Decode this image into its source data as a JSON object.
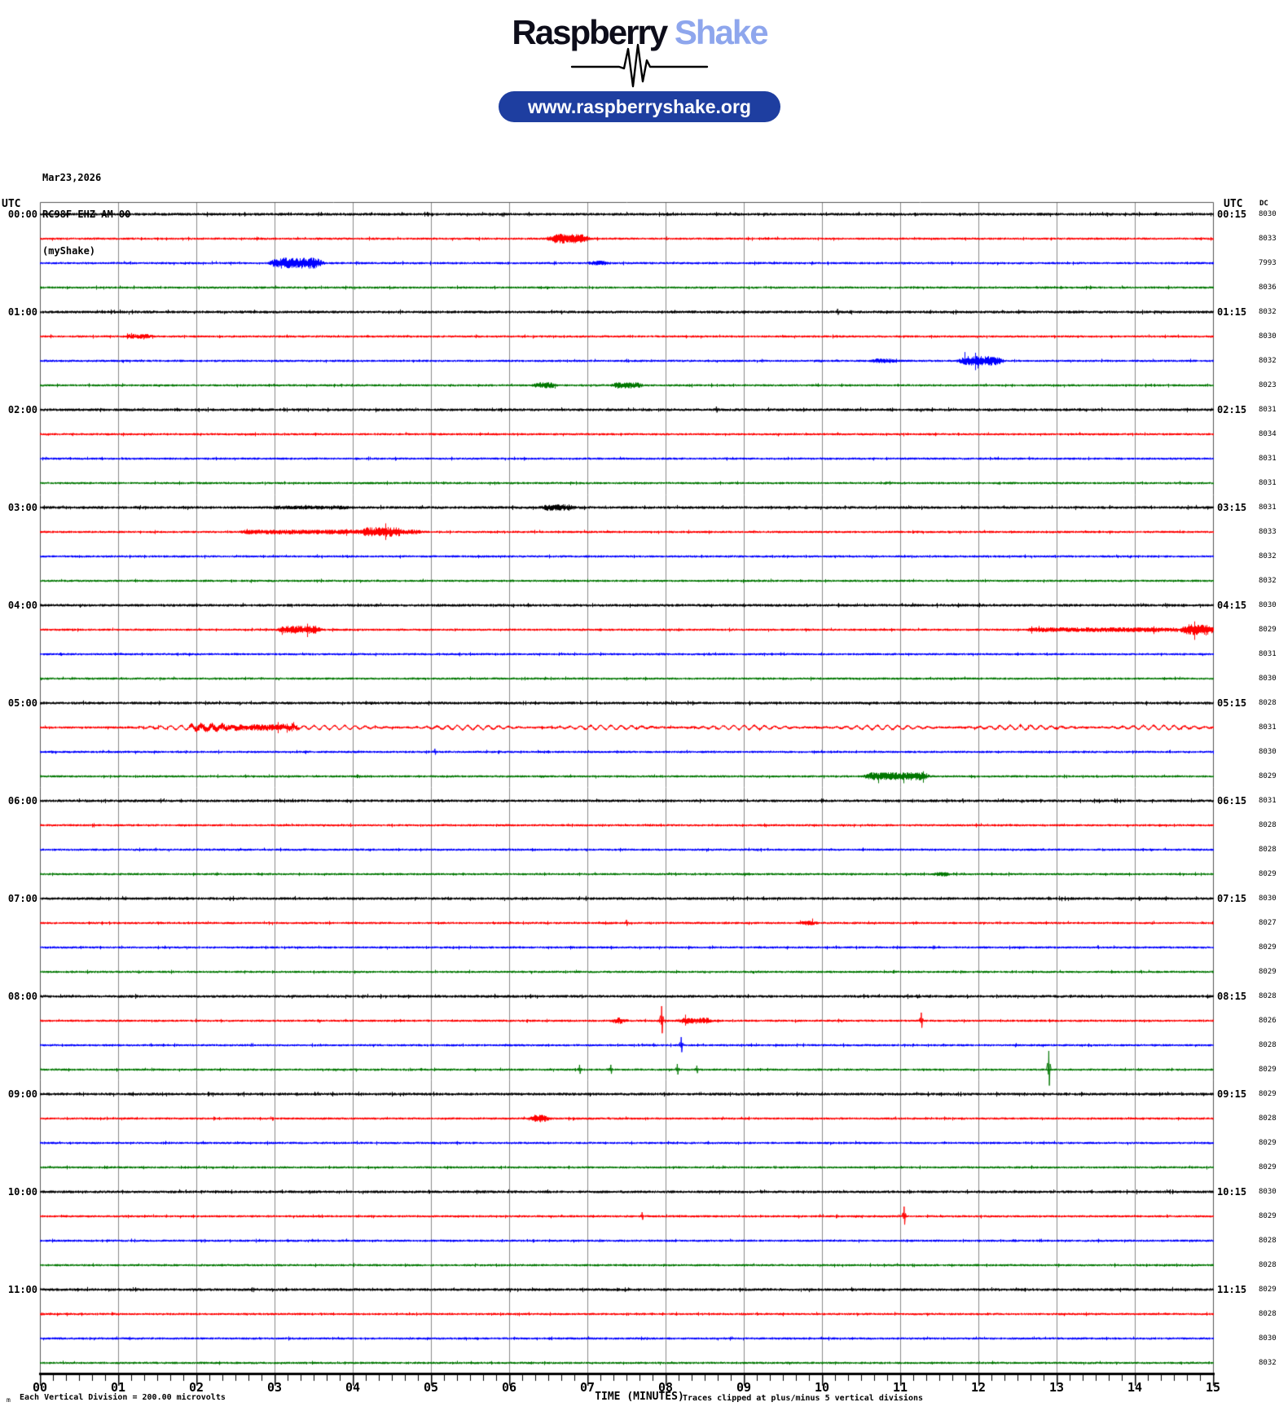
{
  "header": {
    "logo_primary": "Raspberry",
    "logo_secondary": "Shake",
    "url": "www.raspberryshake.org"
  },
  "station": {
    "date": "Mar23,2026",
    "id": "RC98F EHZ AM 00",
    "network": "(myShake)"
  },
  "axis": {
    "left_unit": "UTC",
    "right_unit": "UTC",
    "dc_header": "DC",
    "xlabel": "TIME (MINUTES)",
    "clip_note": "Traces clipped at plus/minus 5 vertical divisions",
    "scale_note": "Each Vertical Division =  200.00 microvolts",
    "scale_note_prefix": "m"
  },
  "colors": {
    "pill_background": "#1e3ea0",
    "logo_secondary_color": "#8ea6ed",
    "trace_colors": [
      "#000000",
      "#ff0000",
      "#0000ff",
      "#007700"
    ],
    "grid_color": "#8a8a8a",
    "frame_color": "#555555",
    "axis_color": "#000000"
  },
  "chart_data": {
    "type": "line",
    "subtype": "helicorder-seismogram",
    "title": "RC98F EHZ AM 00 (myShake) Mar23,2026",
    "xlabel": "TIME (MINUTES)",
    "x_range": [
      0,
      15
    ],
    "x_ticks": [
      "00",
      "01",
      "02",
      "03",
      "04",
      "05",
      "06",
      "07",
      "08",
      "09",
      "10",
      "11",
      "12",
      "13",
      "14",
      "15"
    ],
    "minor_ticks_per_minute": 6,
    "rows_per_hour": 4,
    "minutes_per_row": 15,
    "num_rows": 48,
    "vertical_division_microvolts": 200.0,
    "clip_divisions": 5,
    "hour_labels_left": [
      "00:00",
      "01:00",
      "02:00",
      "03:00",
      "04:00",
      "05:00",
      "06:00",
      "07:00",
      "08:00",
      "09:00",
      "10:00",
      "11:00"
    ],
    "hour_labels_right": [
      "00:15",
      "01:15",
      "02:15",
      "03:15",
      "04:15",
      "05:15",
      "06:15",
      "07:15",
      "08:15",
      "09:15",
      "10:15",
      "11:15"
    ],
    "dc_values": [
      8030,
      8033,
      7993,
      8036,
      8032,
      8030,
      8032,
      8023,
      8031,
      8034,
      8031,
      8031,
      8031,
      8033,
      8032,
      8032,
      8030,
      8029,
      8031,
      8030,
      8028,
      8031,
      8030,
      8029,
      8031,
      8028,
      8028,
      8029,
      8030,
      8027,
      8029,
      8029,
      8028,
      8026,
      8028,
      8029,
      8029,
      8028,
      8029,
      8029,
      8030,
      8029,
      8028,
      8028,
      8029,
      8028,
      8030,
      8032
    ],
    "events": [
      {
        "row": 2,
        "type": "burst",
        "m0": 6.5,
        "m1": 7.0,
        "amp": 6
      },
      {
        "row": 3,
        "type": "burst",
        "m0": 2.95,
        "m1": 3.6,
        "amp": 7
      },
      {
        "row": 3,
        "type": "burst",
        "m0": 7.0,
        "m1": 7.3,
        "amp": 3
      },
      {
        "row": 5,
        "type": "spike",
        "m": 10.2,
        "amp": 4
      },
      {
        "row": 6,
        "type": "burst",
        "m0": 1.05,
        "m1": 1.45,
        "amp": 3
      },
      {
        "row": 7,
        "type": "burst",
        "m0": 10.6,
        "m1": 10.95,
        "amp": 3
      },
      {
        "row": 7,
        "type": "burst",
        "m0": 11.75,
        "m1": 12.3,
        "amp": 6
      },
      {
        "row": 8,
        "type": "burst",
        "m0": 6.3,
        "m1": 6.6,
        "amp": 4
      },
      {
        "row": 8,
        "type": "burst",
        "m0": 7.3,
        "m1": 7.7,
        "amp": 4
      },
      {
        "row": 9,
        "type": "spike",
        "m": 8.65,
        "amp": 4
      },
      {
        "row": 13,
        "type": "burst",
        "m0": 2.95,
        "m1": 4.0,
        "amp": 2.5
      },
      {
        "row": 13,
        "type": "burst",
        "m0": 6.4,
        "m1": 6.85,
        "amp": 4
      },
      {
        "row": 14,
        "type": "burst",
        "m0": 2.55,
        "m1": 4.9,
        "amp": 3
      },
      {
        "row": 14,
        "type": "burst",
        "m0": 4.1,
        "m1": 4.65,
        "amp": 6
      },
      {
        "row": 18,
        "type": "burst",
        "m0": 3.05,
        "m1": 3.6,
        "amp": 5
      },
      {
        "row": 18,
        "type": "burst",
        "m0": 12.6,
        "m1": 14.6,
        "amp": 3
      },
      {
        "row": 18,
        "type": "burst",
        "m0": 14.6,
        "m1": 15.0,
        "amp": 7
      },
      {
        "row": 22,
        "type": "wave",
        "m0": 1.0,
        "m1": 15.0,
        "amp": 2.5
      },
      {
        "row": 22,
        "type": "burst",
        "m0": 1.9,
        "m1": 3.3,
        "amp": 4
      },
      {
        "row": 23,
        "type": "spike",
        "m": 5.05,
        "amp": 4
      },
      {
        "row": 24,
        "type": "burst",
        "m0": 10.55,
        "m1": 11.35,
        "amp": 5
      },
      {
        "row": 25,
        "type": "spike",
        "m": 11.8,
        "amp": 3
      },
      {
        "row": 28,
        "type": "burst",
        "m0": 11.4,
        "m1": 11.65,
        "amp": 3
      },
      {
        "row": 30,
        "type": "spike",
        "m": 7.5,
        "amp": 4
      },
      {
        "row": 30,
        "type": "burst",
        "m0": 9.7,
        "m1": 9.95,
        "amp": 3
      },
      {
        "row": 34,
        "type": "burst",
        "m0": 7.3,
        "m1": 7.5,
        "amp": 4
      },
      {
        "row": 34,
        "type": "spike",
        "m": 7.95,
        "amp": 18
      },
      {
        "row": 34,
        "type": "burst",
        "m0": 8.15,
        "m1": 8.6,
        "amp": 4
      },
      {
        "row": 34,
        "type": "spike",
        "m": 11.27,
        "amp": 10
      },
      {
        "row": 35,
        "type": "spike",
        "m": 8.2,
        "amp": 10
      },
      {
        "row": 36,
        "type": "spike",
        "m": 6.9,
        "amp": 6
      },
      {
        "row": 36,
        "type": "spike",
        "m": 7.3,
        "amp": 6
      },
      {
        "row": 36,
        "type": "spike",
        "m": 8.15,
        "amp": 7
      },
      {
        "row": 36,
        "type": "spike",
        "m": 8.4,
        "amp": 5
      },
      {
        "row": 36,
        "type": "spike",
        "m": 12.9,
        "amp": 23
      },
      {
        "row": 38,
        "type": "burst",
        "m0": 6.25,
        "m1": 6.5,
        "amp": 5
      },
      {
        "row": 42,
        "type": "spike",
        "m": 7.7,
        "amp": 5
      },
      {
        "row": 42,
        "type": "spike",
        "m": 11.05,
        "amp": 12
      }
    ]
  }
}
